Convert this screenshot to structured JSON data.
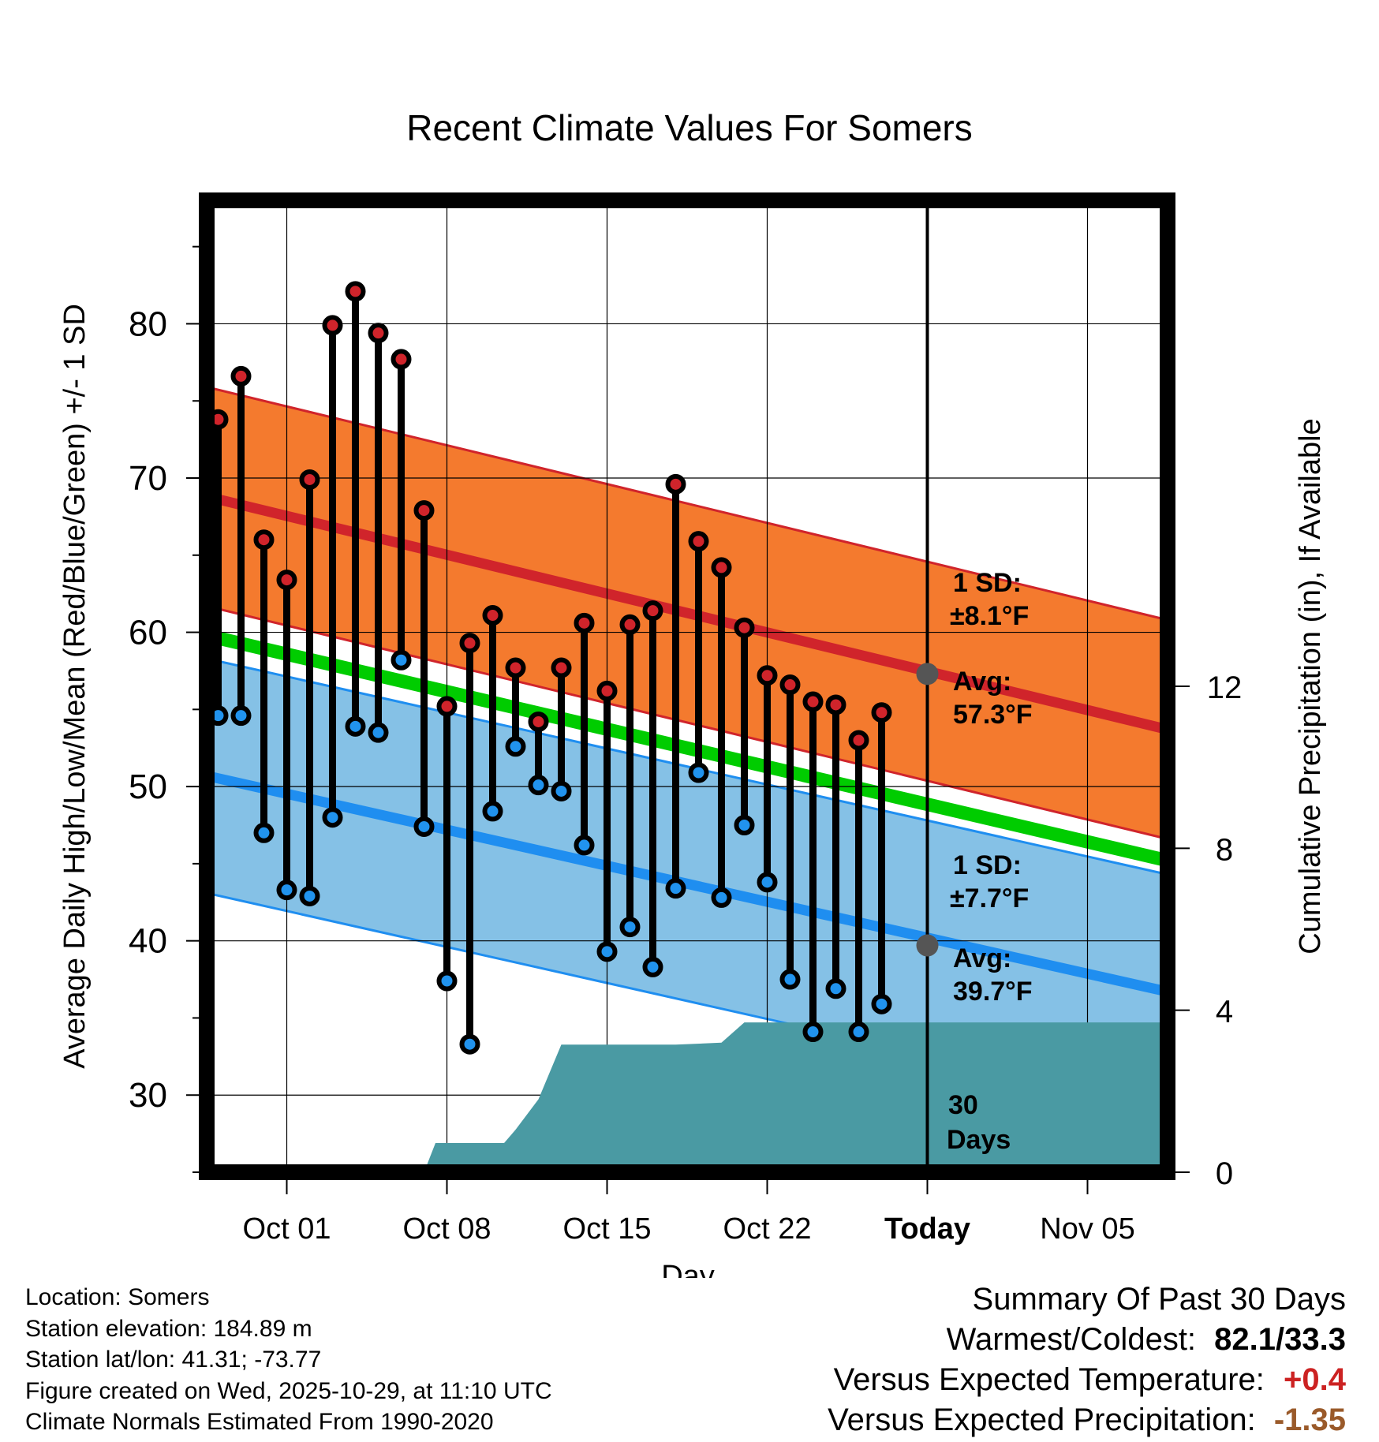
{
  "chart_data": {
    "type": "line",
    "title": "Recent Climate Values For Somers",
    "xlabel": "Day",
    "ylabel": "Average Daily High/Low/Mean (Red/Blue/Green) +/- 1 SD",
    "y2label": "Cumulative Precipitation (in), If Available",
    "ylim": [
      25,
      88
    ],
    "y2lim": [
      0,
      24
    ],
    "xlim": [
      27.5,
      69.5
    ],
    "x_ticks": [
      {
        "day": 31,
        "label": "Oct 01"
      },
      {
        "day": 38,
        "label": "Oct 08"
      },
      {
        "day": 45,
        "label": "Oct 15"
      },
      {
        "day": 52,
        "label": "Oct 22"
      },
      {
        "day": 59,
        "label": "Today"
      },
      {
        "day": 66,
        "label": "Nov 05"
      }
    ],
    "y_ticks": [
      30,
      40,
      50,
      60,
      70,
      80
    ],
    "y2_ticks": [
      0,
      4,
      8,
      12
    ],
    "days": [
      28,
      29,
      30,
      31,
      32,
      33,
      34,
      35,
      36,
      37,
      38,
      39,
      40,
      41,
      42,
      43,
      44,
      45,
      46,
      47,
      48,
      49,
      50,
      51,
      52,
      53,
      54,
      55,
      56,
      57
    ],
    "highs": [
      73.8,
      76.6,
      66.0,
      63.4,
      69.9,
      79.9,
      82.1,
      79.4,
      77.7,
      67.9,
      55.2,
      59.3,
      61.1,
      57.7,
      54.2,
      57.7,
      60.6,
      56.2,
      60.5,
      61.4,
      69.6,
      65.9,
      64.2,
      60.3,
      57.2,
      56.6,
      55.5,
      55.3,
      53.0,
      54.8
    ],
    "lows": [
      54.6,
      54.6,
      47.0,
      43.3,
      42.9,
      48.0,
      53.9,
      53.5,
      58.2,
      47.4,
      37.4,
      33.3,
      48.4,
      52.6,
      50.1,
      49.7,
      46.2,
      39.3,
      40.9,
      38.3,
      43.4,
      50.9,
      42.8,
      47.5,
      43.8,
      37.5,
      34.1,
      36.9,
      34.1,
      35.9
    ],
    "normal_high": {
      "start": [
        27.5,
        68.8
      ],
      "end": [
        69.5,
        53.7
      ],
      "sd": 7.1
    },
    "normal_low": {
      "start": [
        27.5,
        50.7
      ],
      "end": [
        69.5,
        36.7
      ],
      "sd": 7.6
    },
    "normal_mean": {
      "start": [
        27.5,
        59.8
      ],
      "end": [
        69.5,
        45.2
      ]
    },
    "precip_cumulative": [
      [
        37.0,
        0
      ],
      [
        37.5,
        0.72
      ],
      [
        40.0,
        0.72
      ],
      [
        40.5,
        0.72
      ],
      [
        41.0,
        1.05
      ],
      [
        42.0,
        1.8
      ],
      [
        43.0,
        3.15
      ],
      [
        45.0,
        3.15
      ],
      [
        48.0,
        3.15
      ],
      [
        50.0,
        3.2
      ],
      [
        51.0,
        3.7
      ],
      [
        53.0,
        3.7
      ],
      [
        69.5,
        3.7
      ]
    ],
    "today_day": 59,
    "colors": {
      "high_band": "#f47a2e",
      "high_line": "#d0242b",
      "low_band": "#85c1e6",
      "low_line": "#1f8ef0",
      "mean_line": "#00cc00",
      "precip": "#4a9aa3",
      "high_marker": "#d0242b",
      "low_marker": "#2193ee",
      "avg_marker": "#555555",
      "annot_text": "#595959"
    }
  },
  "annotations": {
    "high_sd_label": "1 SD:",
    "high_sd_value": "±8.1°F",
    "high_avg_label": "Avg:",
    "high_avg_value": "57.3°F",
    "low_sd_label": "1 SD:",
    "low_sd_value": "±7.7°F",
    "low_avg_label": "Avg:",
    "low_avg_value": "39.7°F",
    "days_num": "30",
    "days_word": "Days",
    "high_avg_point": 57.3,
    "low_avg_point": 39.7
  },
  "info": {
    "location": "Location: Somers",
    "elevation": "Station elevation: 184.89 m",
    "latlon": "Station lat/lon: 41.31; -73.77",
    "created": "Figure created on Wed, 2025-10-29, at 11:10 UTC",
    "normals": "Climate Normals Estimated From 1990-2020"
  },
  "summary": {
    "title": "Summary Of Past 30 Days",
    "warmest_coldest_label": "Warmest/Coldest:",
    "warmest_coldest_value": "82.1/33.3",
    "temp_label": "Versus Expected Temperature:",
    "temp_value": "+0.4",
    "temp_color": "#cc2222",
    "precip_label": "Versus Expected Precipitation:",
    "precip_value": "-1.35",
    "precip_color": "#9a5a2a"
  }
}
